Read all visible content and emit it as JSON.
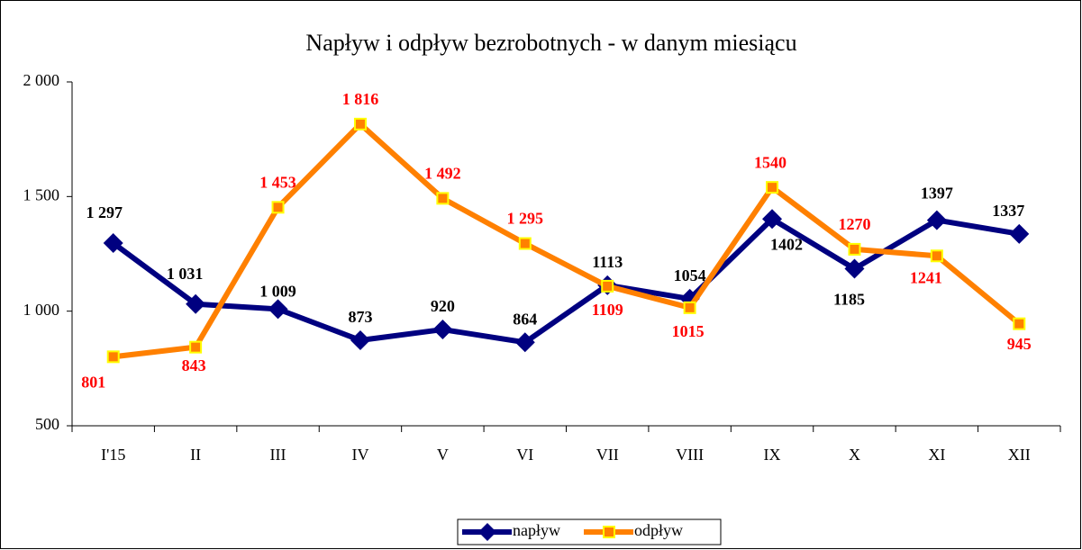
{
  "chart_data": {
    "type": "line",
    "title": "Napływ i odpływ bezrobotnych - w danym miesiącu",
    "categories": [
      "I'15",
      "II",
      "III",
      "IV",
      "V",
      "VI",
      "VII",
      "VIII",
      "IX",
      "X",
      "XI",
      "XII"
    ],
    "series": [
      {
        "name": "napływ",
        "color": "#000080",
        "label_color": "#000000",
        "values": [
          1297,
          1031,
          1009,
          873,
          920,
          864,
          1113,
          1054,
          1402,
          1185,
          1397,
          1337
        ],
        "value_labels": [
          "1 297",
          "1 031",
          "1 009",
          "873",
          "920",
          "864",
          "1113",
          "1054",
          "1402",
          "1185",
          "1397",
          "1337"
        ]
      },
      {
        "name": "odpływ",
        "color": "#ff8000",
        "label_color": "#ff0000",
        "values": [
          801,
          843,
          1453,
          1816,
          1492,
          1295,
          1109,
          1015,
          1540,
          1270,
          1241,
          945
        ],
        "value_labels": [
          "801",
          "843",
          "1 453",
          "1 816",
          "1 492",
          "1 295",
          "1109",
          "1015",
          "1540",
          "1270",
          "1241",
          "945"
        ]
      }
    ],
    "ylim": [
      500,
      2000
    ],
    "yticks": [
      500,
      {
        "value": 1000,
        "label": "1 000"
      },
      {
        "value": 1500,
        "label": "1 500"
      },
      {
        "value": 2000,
        "label": "2 000"
      }
    ],
    "legend": "bottom"
  }
}
